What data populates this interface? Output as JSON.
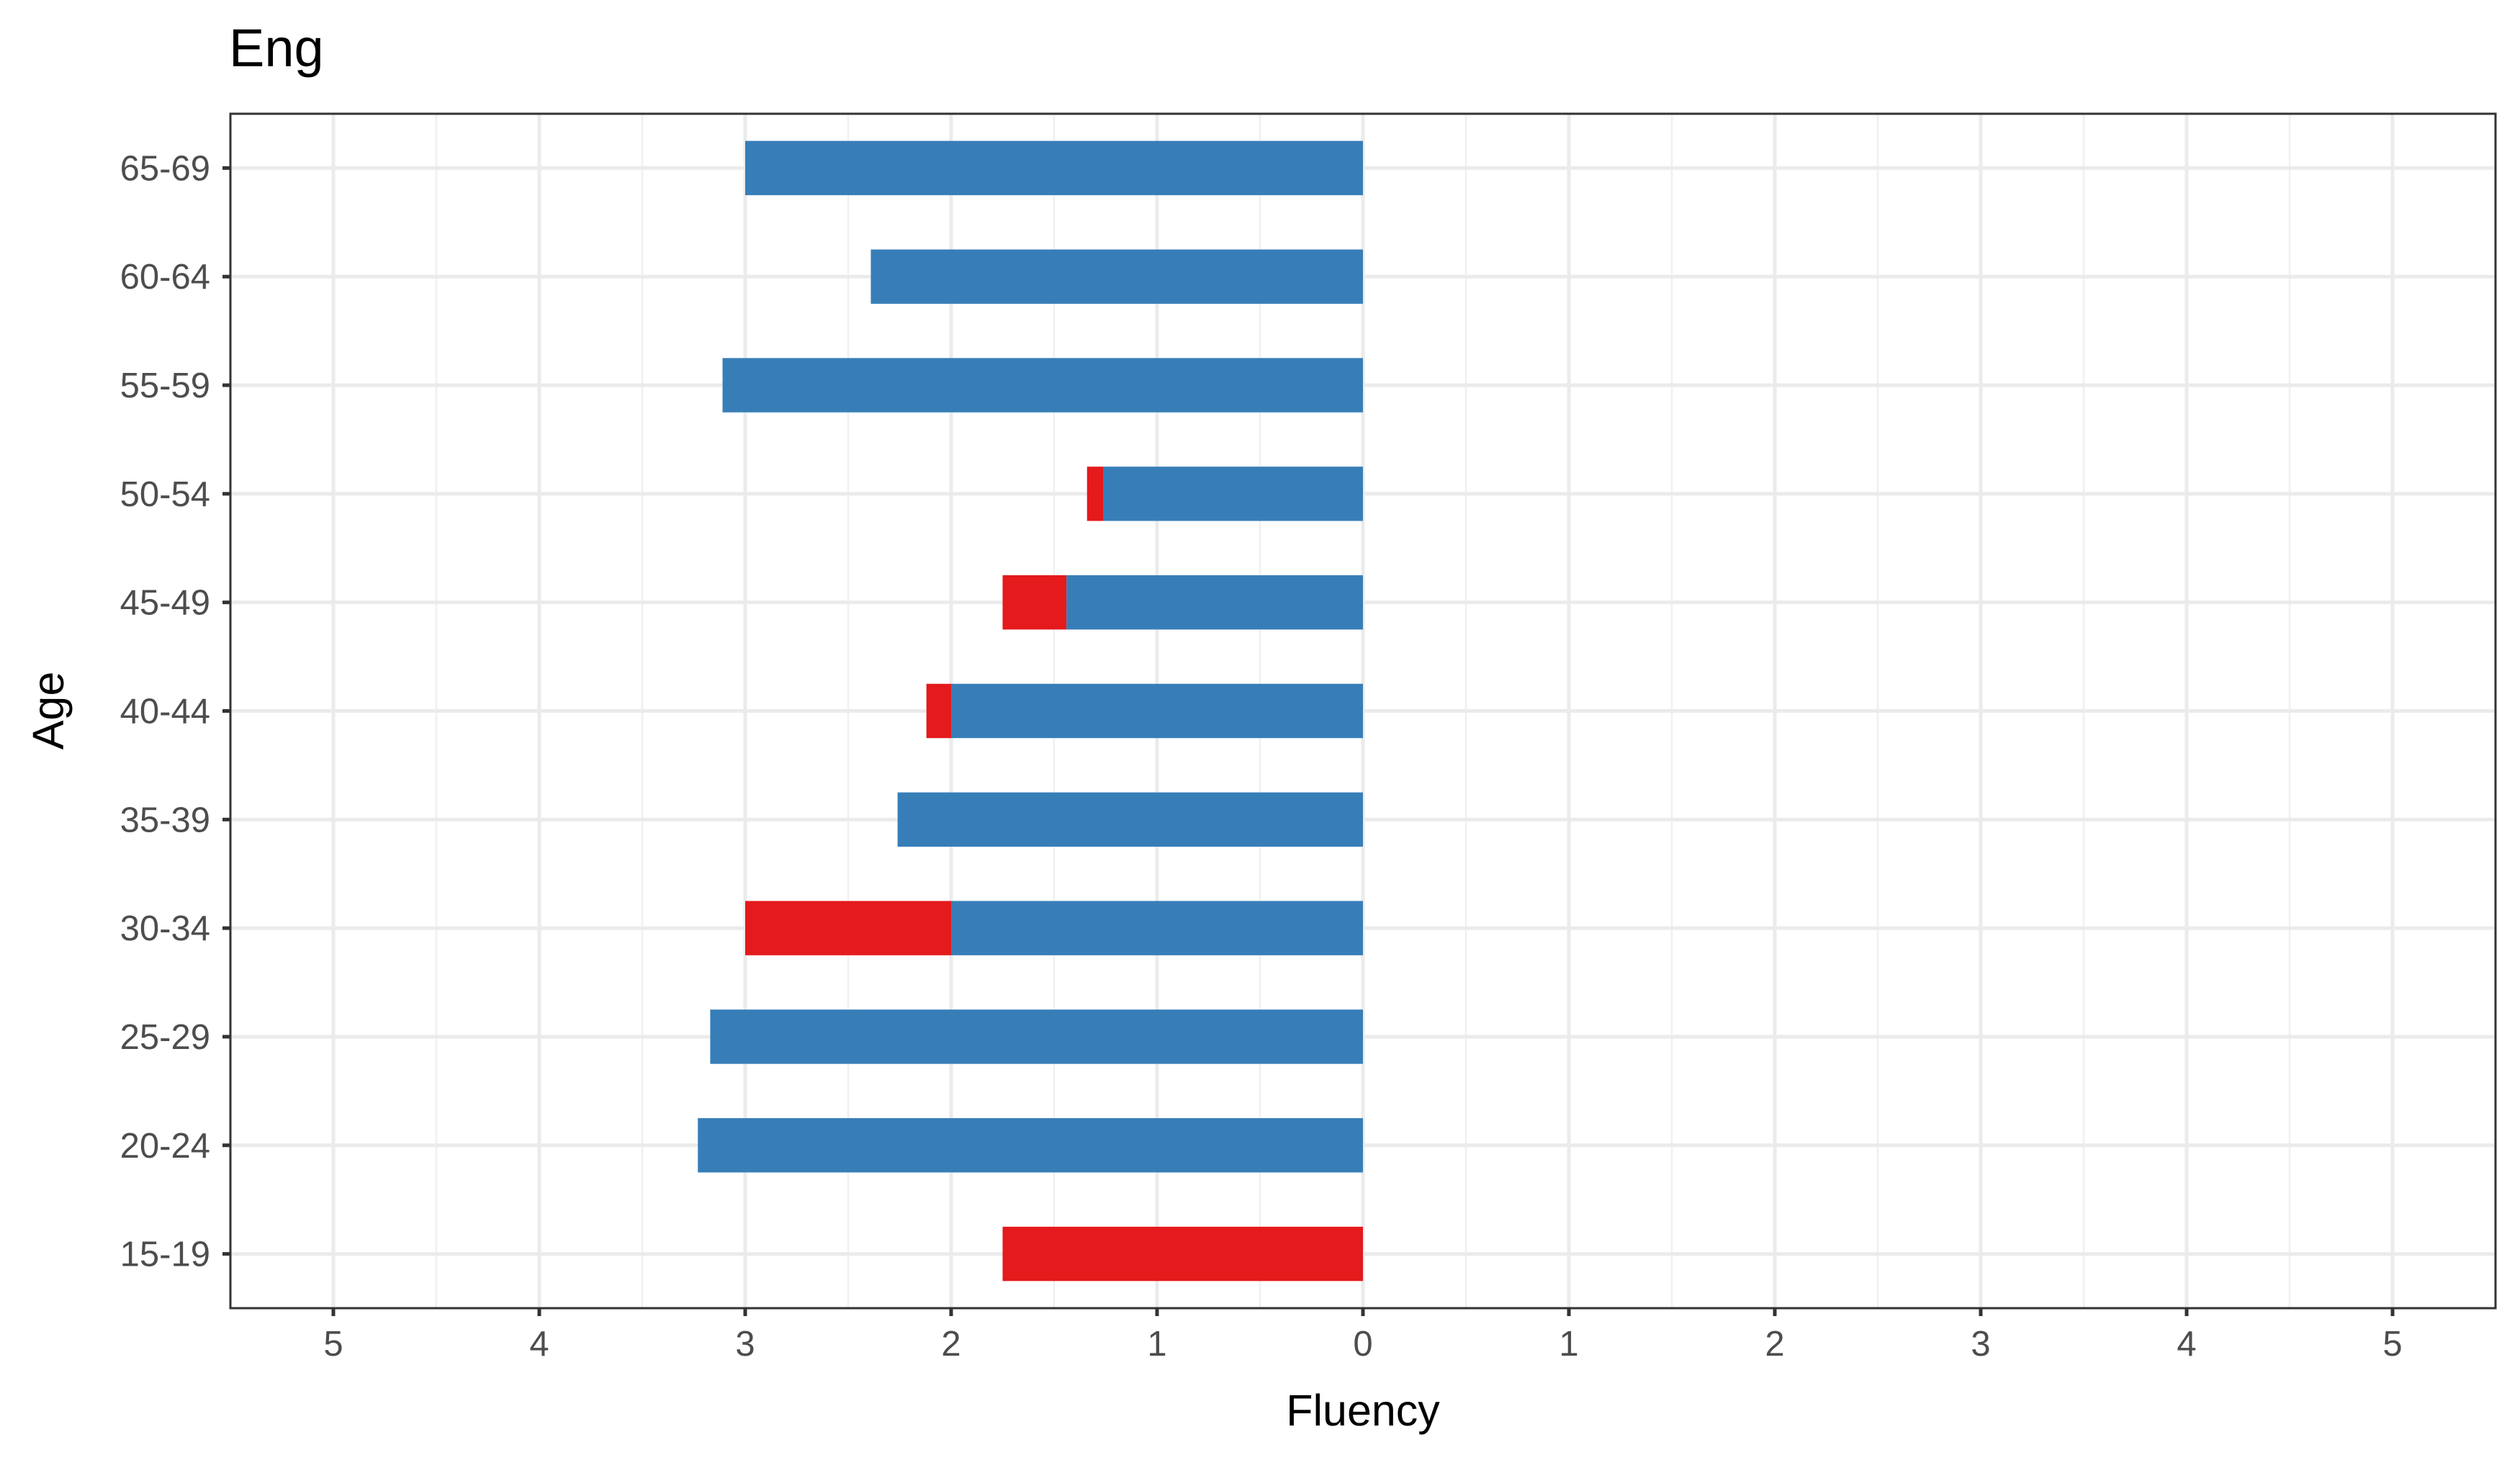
{
  "chart_data": {
    "type": "bar",
    "orientation": "horizontal",
    "stacked": true,
    "title": "Eng",
    "xlabel": "Fluency",
    "ylabel": "Age",
    "categories": [
      "15-19",
      "20-24",
      "25-29",
      "30-34",
      "35-39",
      "40-44",
      "45-49",
      "50-54",
      "55-59",
      "60-64",
      "65-69"
    ],
    "series": [
      {
        "color": "#377EB8",
        "values": [
          0,
          3.23,
          3.17,
          2.0,
          2.26,
          2.0,
          1.44,
          1.26,
          3.11,
          2.39,
          3.0
        ]
      },
      {
        "color": "#E41A1C",
        "values": [
          1.75,
          0,
          0,
          1.0,
          0,
          0.12,
          0.31,
          0.08,
          0,
          0,
          0
        ]
      }
    ],
    "direction": "left",
    "xlim": [
      -5.5,
      5.5
    ],
    "x_ticks": [
      -5,
      -4,
      -3,
      -2,
      -1,
      0,
      1,
      2,
      3,
      4,
      5
    ],
    "x_tick_labels": [
      "5",
      "4",
      "3",
      "2",
      "1",
      "0",
      "1",
      "2",
      "3",
      "4",
      "5"
    ],
    "grid": true,
    "legend": "none"
  }
}
